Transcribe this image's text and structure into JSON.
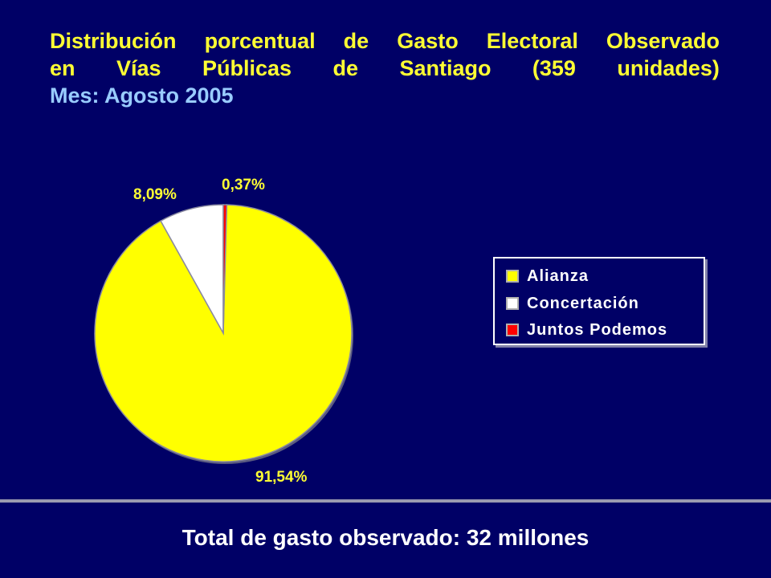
{
  "title": {
    "line1": [
      "Distribución",
      "porcentual",
      "de",
      "Gasto",
      "Electoral",
      "Observado"
    ],
    "line2": [
      "en",
      "Vías",
      "Públicas",
      "de",
      "Santiago",
      "(359",
      "unidades)"
    ],
    "subtitle": "Mes: Agosto 2005"
  },
  "chart_data": {
    "type": "pie",
    "title": "Distribución porcentual de Gasto Electoral Observado en Vías Públicas de Santiago (359 unidades)",
    "subtitle": "Mes: Agosto 2005",
    "slices": [
      {
        "name": "Alianza",
        "value": 91.54,
        "label": "91,54%",
        "color": "#ffff00"
      },
      {
        "name": "Concertación",
        "value": 8.09,
        "label": "8,09%",
        "color": "#ffffff"
      },
      {
        "name": "Juntos Podemos",
        "value": 0.37,
        "label": "0,37%",
        "color": "#ff0000"
      }
    ],
    "legend_position": "right"
  },
  "legend": {
    "items": [
      {
        "label": "Alianza",
        "color": "#ffff00"
      },
      {
        "label": "Concertación",
        "color": "#ffffff"
      },
      {
        "label": "Juntos Podemos",
        "color": "#ff0000"
      }
    ]
  },
  "footer": {
    "total": "Total de gasto observado: 32 millones"
  }
}
